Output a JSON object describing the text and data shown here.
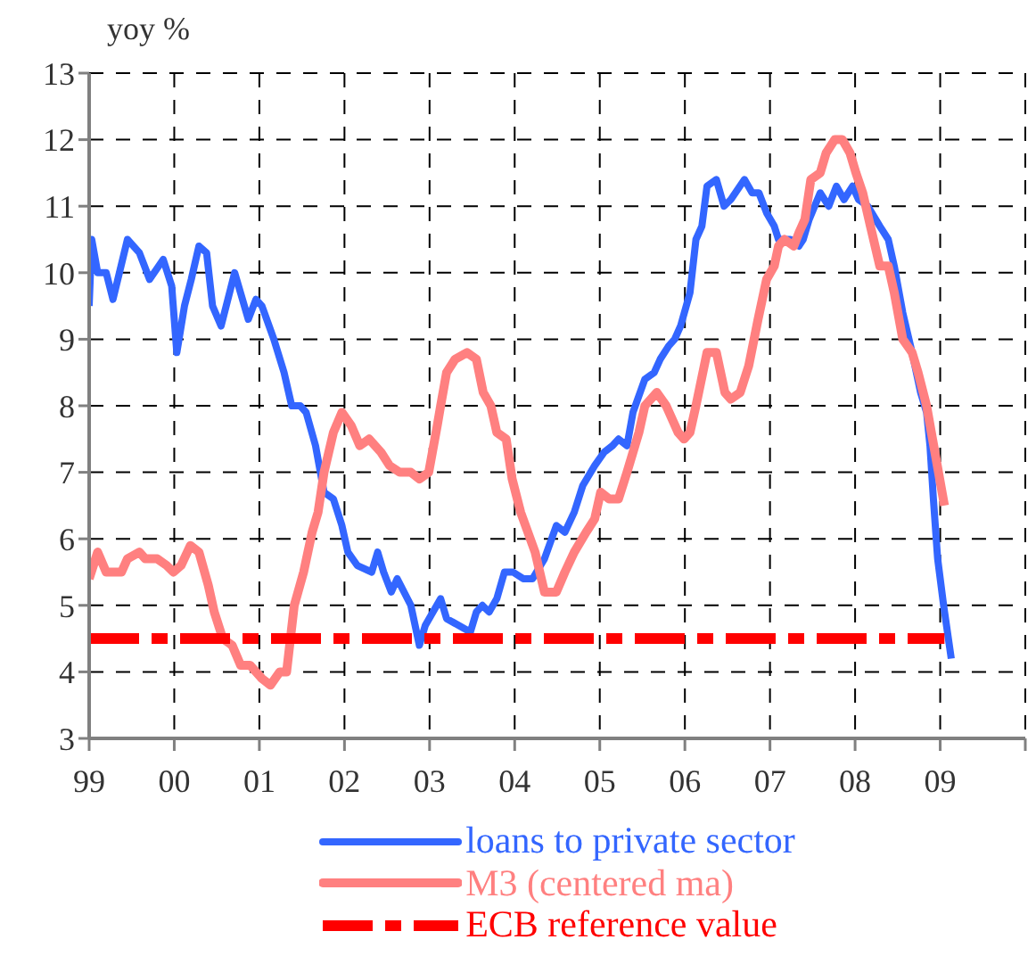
{
  "chart_data": {
    "type": "line",
    "ylabel": "yoy %",
    "xlim": [
      1999,
      2010
    ],
    "xticks": [
      {
        "value": 1999,
        "label": "99"
      },
      {
        "value": 2000,
        "label": "00"
      },
      {
        "value": 2001,
        "label": "01"
      },
      {
        "value": 2002,
        "label": "02"
      },
      {
        "value": 2003,
        "label": "03"
      },
      {
        "value": 2004,
        "label": "04"
      },
      {
        "value": 2005,
        "label": "05"
      },
      {
        "value": 2006,
        "label": "06"
      },
      {
        "value": 2007,
        "label": "07"
      },
      {
        "value": 2008,
        "label": "08"
      },
      {
        "value": 2009,
        "label": "09"
      },
      {
        "value": 2010,
        "label": null
      }
    ],
    "ylim": [
      3,
      13
    ],
    "yticks": [
      3,
      4,
      5,
      6,
      7,
      8,
      9,
      10,
      11,
      12,
      13
    ],
    "grid": true,
    "legend": "bottom",
    "marker": "none",
    "series": [
      {
        "name": "loans to private sector",
        "color": "#3366ff",
        "x": [
          1999.0,
          1999.03,
          1999.1,
          1999.2,
          1999.28,
          1999.45,
          1999.59,
          1999.71,
          1999.87,
          1999.97,
          2000.03,
          2000.12,
          2000.2,
          2000.29,
          2000.38,
          2000.45,
          2000.55,
          2000.71,
          2000.87,
          2000.96,
          2001.03,
          2001.17,
          2001.29,
          2001.38,
          2001.48,
          2001.55,
          2001.66,
          2001.76,
          2001.87,
          2001.97,
          2002.04,
          2002.15,
          2002.32,
          2002.39,
          2002.46,
          2002.55,
          2002.62,
          2002.78,
          2002.88,
          2002.95,
          2003.13,
          2003.2,
          2003.48,
          2003.55,
          2003.62,
          2003.7,
          2003.79,
          2003.88,
          2003.98,
          2004.1,
          2004.21,
          2004.35,
          2004.49,
          2004.59,
          2004.7,
          2004.8,
          2004.94,
          2005.05,
          2005.15,
          2005.22,
          2005.32,
          2005.39,
          2005.53,
          2005.64,
          2005.71,
          2005.81,
          2005.88,
          2005.95,
          2006.06,
          2006.13,
          2006.2,
          2006.26,
          2006.37,
          2006.46,
          2006.54,
          2006.7,
          2006.79,
          2006.87,
          2006.96,
          2007.05,
          2007.1,
          2007.16,
          2007.24,
          2007.34,
          2007.39,
          2007.46,
          2007.59,
          2007.69,
          2007.78,
          2007.87,
          2007.97,
          2008.04,
          2008.15,
          2008.29,
          2008.39,
          2008.46,
          2008.56,
          2008.67,
          2008.77,
          2008.84,
          2008.88,
          2008.92,
          2008.97,
          2009.04,
          2009.13
        ],
        "values": [
          9.5,
          10.5,
          10.0,
          10.0,
          9.6,
          10.5,
          10.3,
          9.9,
          10.2,
          9.8,
          8.8,
          9.5,
          9.9,
          10.4,
          10.3,
          9.5,
          9.2,
          10.0,
          9.3,
          9.6,
          9.5,
          9.0,
          8.5,
          8.0,
          8.0,
          7.9,
          7.4,
          6.7,
          6.6,
          6.2,
          5.8,
          5.6,
          5.5,
          5.8,
          5.5,
          5.2,
          5.4,
          5.0,
          4.4,
          4.7,
          5.1,
          4.8,
          4.6,
          4.9,
          5.0,
          4.9,
          5.1,
          5.5,
          5.5,
          5.4,
          5.4,
          5.7,
          6.2,
          6.1,
          6.4,
          6.8,
          7.1,
          7.3,
          7.4,
          7.5,
          7.4,
          7.9,
          8.4,
          8.5,
          8.7,
          8.9,
          9.0,
          9.2,
          9.7,
          10.5,
          10.7,
          11.3,
          11.4,
          11.0,
          11.1,
          11.4,
          11.2,
          11.2,
          10.9,
          10.7,
          10.5,
          10.5,
          10.5,
          10.4,
          10.5,
          10.8,
          11.2,
          11.0,
          11.3,
          11.1,
          11.3,
          11.1,
          11.0,
          10.7,
          10.5,
          10.1,
          9.4,
          8.8,
          8.2,
          7.9,
          7.4,
          6.6,
          5.7,
          5.0,
          4.2
        ]
      },
      {
        "name": "M3 (centered ma)",
        "color": "#ff8080",
        "x": [
          1999.0,
          1999.1,
          1999.2,
          1999.38,
          1999.45,
          1999.59,
          1999.66,
          1999.8,
          1999.91,
          1999.99,
          2000.08,
          2000.19,
          2000.29,
          2000.4,
          2000.47,
          2000.57,
          2000.68,
          2000.78,
          2000.89,
          2001.03,
          2001.13,
          2001.24,
          2001.32,
          2001.41,
          2001.52,
          2001.62,
          2001.69,
          2001.76,
          2001.87,
          2001.97,
          2002.08,
          2002.18,
          2002.29,
          2002.43,
          2002.53,
          2002.65,
          2002.78,
          2002.88,
          2002.99,
          2003.09,
          2003.13,
          2003.2,
          2003.3,
          2003.44,
          2003.55,
          2003.63,
          2003.72,
          2003.79,
          2003.9,
          2003.97,
          2004.07,
          2004.24,
          2004.35,
          2004.49,
          2004.59,
          2004.7,
          2004.84,
          2004.94,
          2005.01,
          2005.11,
          2005.22,
          2005.32,
          2005.46,
          2005.53,
          2005.67,
          2005.78,
          2005.92,
          2005.99,
          2006.06,
          2006.13,
          2006.26,
          2006.37,
          2006.47,
          2006.54,
          2006.65,
          2006.75,
          2006.86,
          2006.96,
          2007.05,
          2007.1,
          2007.17,
          2007.28,
          2007.34,
          2007.41,
          2007.48,
          2007.59,
          2007.66,
          2007.76,
          2007.85,
          2007.94,
          2008.01,
          2008.09,
          2008.18,
          2008.29,
          2008.39,
          2008.46,
          2008.56,
          2008.67,
          2008.74,
          2008.84,
          2008.91,
          2009.05
        ],
        "values": [
          5.4,
          5.8,
          5.5,
          5.5,
          5.7,
          5.8,
          5.7,
          5.7,
          5.6,
          5.5,
          5.6,
          5.9,
          5.8,
          5.3,
          4.9,
          4.5,
          4.4,
          4.1,
          4.1,
          3.9,
          3.8,
          4.0,
          4.0,
          5.0,
          5.5,
          6.1,
          6.4,
          7.0,
          7.6,
          7.9,
          7.7,
          7.4,
          7.5,
          7.3,
          7.1,
          7.0,
          7.0,
          6.9,
          7.0,
          7.7,
          8.0,
          8.5,
          8.7,
          8.8,
          8.7,
          8.2,
          8.0,
          7.6,
          7.5,
          6.9,
          6.4,
          5.8,
          5.2,
          5.2,
          5.5,
          5.8,
          6.1,
          6.3,
          6.7,
          6.6,
          6.6,
          7.0,
          7.6,
          8.0,
          8.2,
          8.0,
          7.6,
          7.5,
          7.6,
          8.0,
          8.8,
          8.8,
          8.2,
          8.1,
          8.2,
          8.6,
          9.3,
          9.9,
          10.1,
          10.4,
          10.5,
          10.4,
          10.6,
          10.8,
          11.4,
          11.5,
          11.8,
          12.0,
          12.0,
          11.8,
          11.5,
          11.2,
          10.7,
          10.1,
          10.1,
          9.7,
          9.0,
          8.8,
          8.5,
          8.0,
          7.5,
          6.5
        ]
      },
      {
        "name": "ECB reference value",
        "color": "#ff0000",
        "line_style": "dashed",
        "x": [
          1999,
          2009.05
        ],
        "values": [
          4.5,
          4.5
        ]
      }
    ]
  }
}
